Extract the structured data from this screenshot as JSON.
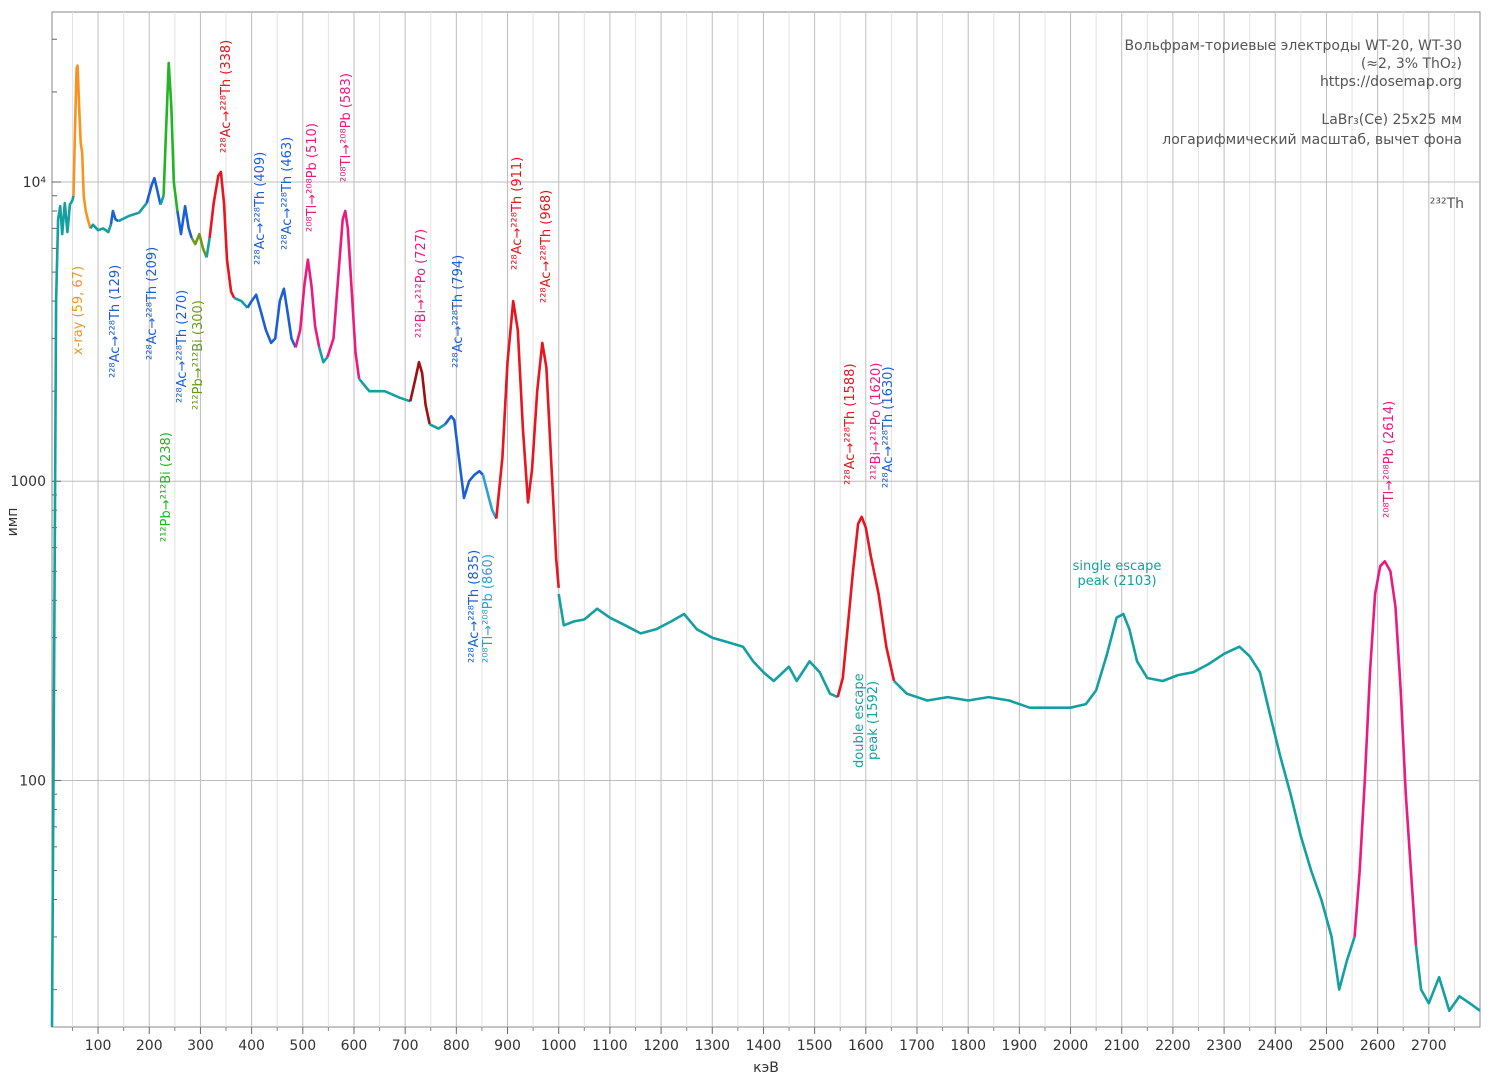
{
  "chart_data": {
    "type": "line",
    "log_y": true,
    "grid": true,
    "x_label": "кэВ",
    "y_label": "имп",
    "xlim": [
      10,
      2800
    ],
    "ylim": [
      15,
      37000
    ],
    "xticks": [
      100,
      200,
      300,
      400,
      500,
      600,
      700,
      800,
      900,
      1000,
      1100,
      1200,
      1300,
      1400,
      1500,
      1600,
      1700,
      1800,
      1900,
      2000,
      2100,
      2200,
      2300,
      2400,
      2500,
      2600,
      2700
    ],
    "xminorticks": [
      50,
      150,
      250,
      350,
      450,
      550,
      650,
      750,
      850,
      950,
      1050,
      1150,
      1250,
      1350,
      1450,
      1550,
      1650,
      1750,
      1850,
      1950,
      2050,
      2150,
      2250,
      2350,
      2450,
      2550,
      2650,
      2750
    ],
    "yticks": [
      100,
      1000,
      {
        "value": 10000,
        "label": "10⁴"
      }
    ],
    "yminorticks": [
      20,
      30,
      40,
      50,
      60,
      70,
      80,
      90,
      200,
      300,
      400,
      500,
      600,
      700,
      800,
      900,
      2000,
      3000,
      4000,
      5000,
      6000,
      7000,
      8000,
      9000,
      20000,
      30000
    ],
    "info": [
      "Вольфрам-ториевые электроды WT-20, WT-30",
      "(≈2, 3% ThO₂)",
      "https://dosemap.org",
      "LaBr₃(Ce) 25x25 мм",
      "логарифмический масштаб, вычет фона"
    ],
    "isotope": "²³²Th",
    "series": [
      {
        "color": "#14a0a0",
        "x": [
          10,
          14,
          18,
          22,
          26,
          30,
          35,
          40,
          45,
          50,
          52
        ],
        "values": [
          15,
          200,
          4000,
          7500,
          8300,
          6700,
          8500,
          6800,
          8400,
          8700,
          9000
        ]
      },
      {
        "color": "#f7931e",
        "x": [
          52,
          55,
          58,
          60,
          63,
          66,
          69,
          72,
          76,
          80,
          85
        ],
        "values": [
          9000,
          15000,
          24000,
          24500,
          18000,
          13500,
          12500,
          9000,
          8000,
          7500,
          7000
        ]
      },
      {
        "color": "#14a0a0",
        "x": [
          85,
          90,
          100,
          110,
          120,
          125
        ],
        "values": [
          7000,
          7200,
          6900,
          7000,
          6800,
          7200
        ]
      },
      {
        "color": "#1a5fd6",
        "x": [
          125,
          129,
          134,
          140
        ],
        "values": [
          7200,
          8000,
          7500,
          7400
        ]
      },
      {
        "color": "#14a0a0",
        "x": [
          140,
          160,
          180,
          195
        ],
        "values": [
          7400,
          7700,
          7900,
          8500
        ]
      },
      {
        "color": "#1a5fd6",
        "x": [
          195,
          205,
          210,
          215,
          222
        ],
        "values": [
          8500,
          9800,
          10300,
          9500,
          8400
        ]
      },
      {
        "color": "#14a0a0",
        "x": [
          222,
          228
        ],
        "values": [
          8400,
          9000
        ]
      },
      {
        "color": "#22b422",
        "x": [
          228,
          233,
          238,
          243,
          248,
          255
        ],
        "values": [
          9000,
          15000,
          25000,
          18000,
          10000,
          8000
        ]
      },
      {
        "color": "#1a5fd6",
        "x": [
          255,
          262,
          270,
          277,
          283
        ],
        "values": [
          8000,
          6700,
          8300,
          7000,
          6500
        ]
      },
      {
        "color": "#6a9a1a",
        "x": [
          283,
          290,
          298,
          305,
          312
        ],
        "values": [
          6500,
          6200,
          6700,
          6000,
          5600
        ]
      },
      {
        "color": "#14a0a0",
        "x": [
          312,
          318
        ],
        "values": [
          5600,
          6500
        ]
      },
      {
        "color": "#e8141e",
        "x": [
          318,
          326,
          335,
          340,
          346,
          352,
          360,
          366
        ],
        "values": [
          6500,
          8500,
          10500,
          10800,
          8500,
          5500,
          4300,
          4100
        ]
      },
      {
        "color": "#14a0a0",
        "x": [
          366,
          380,
          392
        ],
        "values": [
          4100,
          4000,
          3800
        ]
      },
      {
        "color": "#1a5fd6",
        "x": [
          392,
          400,
          409,
          418,
          428,
          438,
          446,
          455,
          463,
          470,
          478,
          486
        ],
        "values": [
          3800,
          4000,
          4200,
          3700,
          3200,
          2900,
          3000,
          4000,
          4400,
          3700,
          3000,
          2800
        ]
      },
      {
        "color": "#ea1a7f",
        "x": [
          486,
          495,
          503,
          510,
          517,
          524,
          532
        ],
        "values": [
          2800,
          3200,
          4500,
          5500,
          4500,
          3300,
          2800
        ]
      },
      {
        "color": "#14a0a0",
        "x": [
          532,
          540,
          548
        ],
        "values": [
          2800,
          2500,
          2600
        ]
      },
      {
        "color": "#ea1a7f",
        "x": [
          548,
          560,
          570,
          578,
          583,
          588,
          595,
          603,
          610
        ],
        "values": [
          2600,
          3000,
          5000,
          7500,
          8000,
          7000,
          4500,
          2700,
          2200
        ]
      },
      {
        "color": "#14a0a0",
        "x": [
          610,
          630,
          660,
          690,
          710
        ],
        "values": [
          2200,
          2000,
          2000,
          1900,
          1850
        ]
      },
      {
        "color": "#a01010",
        "x": [
          710,
          720,
          727,
          733,
          740,
          748
        ],
        "values": [
          1850,
          2200,
          2500,
          2300,
          1800,
          1550
        ]
      },
      {
        "color": "#14a0a0",
        "x": [
          748,
          765,
          778
        ],
        "values": [
          1550,
          1500,
          1550
        ]
      },
      {
        "color": "#1a5fd6",
        "x": [
          778,
          790,
          796,
          805,
          815,
          825,
          835,
          845,
          852
        ],
        "values": [
          1550,
          1650,
          1600,
          1200,
          880,
          1000,
          1050,
          1080,
          1050
        ]
      },
      {
        "color": "#2aa0d8",
        "x": [
          852,
          862,
          870,
          878
        ],
        "values": [
          1050,
          900,
          800,
          750
        ]
      },
      {
        "color": "#e8141e",
        "x": [
          878,
          890,
          900,
          911,
          920,
          930,
          940,
          948,
          958,
          968,
          976,
          985,
          995,
          1000
        ],
        "values": [
          750,
          1200,
          2500,
          4000,
          3200,
          1500,
          850,
          1100,
          2000,
          2900,
          2400,
          1200,
          550,
          440
        ]
      },
      {
        "color": "#14a0a0",
        "x": [
          1000,
          1010,
          1030,
          1050,
          1075,
          1100,
          1130,
          1160,
          1190,
          1220,
          1245,
          1270,
          1300,
          1330,
          1360,
          1380,
          1400,
          1420,
          1450,
          1465,
          1490,
          1510,
          1530,
          1545
        ],
        "values": [
          420,
          330,
          340,
          345,
          375,
          350,
          330,
          310,
          320,
          340,
          360,
          320,
          300,
          290,
          280,
          250,
          230,
          215,
          240,
          215,
          250,
          230,
          195,
          190
        ]
      },
      {
        "color": "#e8141e",
        "x": [
          1545,
          1555,
          1565,
          1575,
          1585,
          1592,
          1600,
          1610,
          1625,
          1640,
          1655
        ],
        "values": [
          190,
          220,
          330,
          500,
          720,
          760,
          700,
          560,
          420,
          280,
          215
        ]
      },
      {
        "color": "#14a0a0",
        "x": [
          1655,
          1680,
          1720,
          1760,
          1800,
          1840,
          1880,
          1920,
          1960,
          2000,
          2030,
          2050,
          2070,
          2090,
          2103,
          2115,
          2130,
          2150,
          2180,
          2210,
          2240,
          2270,
          2300,
          2330,
          2350,
          2370,
          2390,
          2410,
          2430,
          2450,
          2470,
          2490,
          2510,
          2525,
          2540,
          2555
        ],
        "values": [
          215,
          195,
          185,
          190,
          185,
          190,
          185,
          175,
          175,
          175,
          180,
          200,
          260,
          350,
          360,
          320,
          250,
          220,
          215,
          225,
          230,
          245,
          265,
          280,
          260,
          230,
          165,
          120,
          90,
          65,
          50,
          40,
          30,
          20,
          25,
          30
        ]
      },
      {
        "color": "#ea1a7f",
        "x": [
          2555,
          2565,
          2575,
          2585,
          2595,
          2605,
          2614,
          2625,
          2635,
          2645,
          2655,
          2665,
          2675
        ],
        "values": [
          30,
          50,
          100,
          230,
          420,
          520,
          540,
          500,
          380,
          200,
          90,
          50,
          28
        ]
      },
      {
        "color": "#14a0a0",
        "x": [
          2675,
          2685,
          2700,
          2720,
          2740,
          2760,
          2780,
          2800
        ],
        "values": [
          28,
          20,
          18,
          22,
          17,
          19,
          18,
          17
        ]
      }
    ],
    "annotations": [
      {
        "text": "x-ray (59, 67)",
        "color": "#f7931e"
      },
      {
        "text": "²²⁸Ac→²²⁸Th (129)",
        "color": "#1a5fd6"
      },
      {
        "text": "²²⁸Ac→²²⁸Th (209)",
        "color": "#1a5fd6"
      },
      {
        "text": "²¹²Pb→²¹²Bi (238)",
        "color": "#22b422"
      },
      {
        "text": "²²⁸Ac→²²⁸Th (270)",
        "color": "#1a5fd6"
      },
      {
        "text": "²¹²Pb→²¹²Bi (300)",
        "color": "#6a9a1a"
      },
      {
        "text": "²²⁸Ac→²²⁸Th (338)",
        "color": "#e8141e"
      },
      {
        "text": "²²⁸Ac→²²⁸Th (409)",
        "color": "#1a5fd6"
      },
      {
        "text": "²²⁸Ac→²²⁸Th (463)",
        "color": "#1a5fd6"
      },
      {
        "text": "²⁰⁸Tl→²⁰⁸Pb (510)",
        "color": "#ea1a7f"
      },
      {
        "text": "²⁰⁸Tl→²⁰⁸Pb (583)",
        "color": "#ea1a7f"
      },
      {
        "text": "²¹²Bi→²¹²Po (727)",
        "color": "#ea1a7f"
      },
      {
        "text": "²²⁸Ac→²²⁸Th (794)",
        "color": "#1a5fd6"
      },
      {
        "text": "²²⁸Ac→²²⁸Th (911)",
        "color": "#e8141e"
      },
      {
        "text": "²²⁸Ac→²²⁸Th (968)",
        "color": "#e8141e"
      },
      {
        "text": "²²⁸Ac→²²⁸Th (835)",
        "color": "#1a5fd6"
      },
      {
        "text": "²⁰⁸Tl→²⁰⁸Pb (860)",
        "color": "#2aa0d8"
      },
      {
        "text": "²²⁸Ac→²²⁸Th (1588)",
        "color": "#e8141e"
      },
      {
        "text": "²¹²Bi→²¹²Po (1620)",
        "color": "#ea1a7f"
      },
      {
        "text": "²²⁸Ac→²²⁸Th (1630)",
        "color": "#1a5fd6"
      },
      {
        "text": "double escape",
        "color": "#14a0a0"
      },
      {
        "text": "peak (1592)",
        "color": "#14a0a0"
      },
      {
        "text": "²⁰⁸Tl→²⁰⁸Pb (2614)",
        "color": "#ea1a7f"
      },
      {
        "text": "single escape",
        "color": "#14a0a0"
      },
      {
        "text": "peak (2103)",
        "color": "#14a0a0"
      }
    ]
  }
}
